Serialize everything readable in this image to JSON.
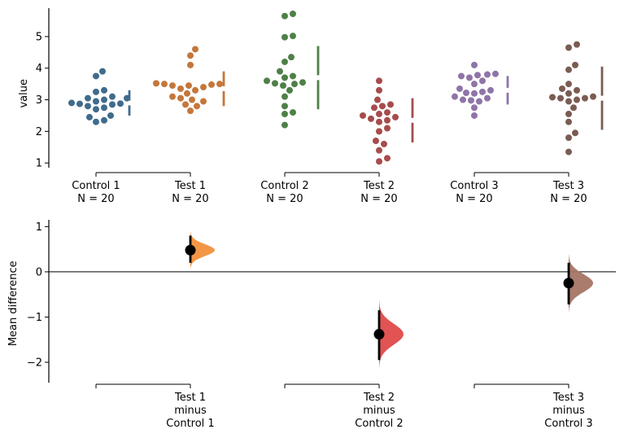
{
  "chart_data": [
    {
      "type": "scatter",
      "ylabel": "value",
      "ylim": [
        0.85,
        5.9
      ],
      "yticks": [
        1,
        2,
        3,
        4,
        5
      ],
      "groups": [
        {
          "label": "Control 1",
          "n_label": "N = 20",
          "color": "#3f6b8c",
          "values": [
            3.9,
            3.75,
            3.3,
            3.25,
            3.1,
            3.05,
            3.05,
            3.0,
            2.95,
            2.9,
            2.88,
            2.87,
            2.85,
            2.8,
            2.75,
            2.7,
            2.5,
            2.45,
            2.35,
            2.3
          ],
          "mean": 2.9,
          "sd": 0.4
        },
        {
          "label": "Test 1",
          "n_label": "N = 20",
          "color": "#c4773c",
          "values": [
            4.6,
            4.4,
            4.1,
            3.52,
            3.5,
            3.5,
            3.48,
            3.45,
            3.45,
            3.4,
            3.35,
            3.3,
            3.2,
            3.1,
            3.05,
            3.0,
            2.95,
            2.85,
            2.8,
            2.65
          ],
          "mean": 3.35,
          "sd": 0.55
        },
        {
          "label": "Control 2",
          "n_label": "N = 20",
          "color": "#4e8047",
          "values": [
            5.72,
            5.65,
            5.02,
            4.98,
            4.35,
            4.2,
            3.9,
            3.75,
            3.7,
            3.55,
            3.52,
            3.5,
            3.45,
            3.3,
            3.1,
            2.8,
            2.6,
            2.55,
            2.2,
            3.6
          ],
          "mean": 3.7,
          "sd": 1.0
        },
        {
          "label": "Test 2",
          "n_label": "N = 20",
          "color": "#a64c4c",
          "values": [
            3.6,
            3.3,
            3.0,
            2.85,
            2.8,
            2.75,
            2.6,
            2.55,
            2.5,
            2.45,
            2.4,
            2.35,
            2.3,
            2.1,
            2.0,
            1.7,
            1.6,
            1.4,
            1.15,
            1.05
          ],
          "mean": 2.35,
          "sd": 0.7
        },
        {
          "label": "Control 3",
          "n_label": "N = 20",
          "color": "#8f74a8",
          "values": [
            4.1,
            3.82,
            3.8,
            3.78,
            3.75,
            3.7,
            3.6,
            3.5,
            3.35,
            3.3,
            3.25,
            3.22,
            3.2,
            3.1,
            3.05,
            3.0,
            2.98,
            2.95,
            2.75,
            2.5
          ],
          "mean": 3.3,
          "sd": 0.45
        },
        {
          "label": "Test 3",
          "n_label": "N = 20",
          "color": "#7a5c52",
          "values": [
            4.75,
            4.65,
            4.1,
            3.95,
            3.5,
            3.35,
            3.3,
            3.1,
            3.08,
            3.05,
            3.05,
            3.0,
            2.95,
            2.75,
            2.55,
            2.3,
            1.95,
            1.8,
            1.35,
            3.2
          ],
          "mean": 3.05,
          "sd": 1.0
        }
      ]
    },
    {
      "type": "scatter",
      "ylabel": "Mean difference",
      "ylim": [
        -2.45,
        1.15
      ],
      "yticks": [
        -2,
        -1,
        0,
        1
      ],
      "comparisons": [
        {
          "label": [
            "Test 1",
            "minus",
            "Control 1"
          ],
          "position": "Test 1",
          "diff": 0.48,
          "ci": [
            0.2,
            0.8
          ],
          "color": "#f2903c",
          "dist_sd": 0.13
        },
        {
          "label": [
            "Test 2",
            "minus",
            "Control 2"
          ],
          "position": "Test 2",
          "diff": -1.38,
          "ci": [
            -1.95,
            -0.85
          ],
          "color": "#e04a4a",
          "dist_sd": 0.23
        },
        {
          "label": [
            "Test 3",
            "minus",
            "Control 3"
          ],
          "position": "Test 3",
          "diff": -0.25,
          "ci": [
            -0.72,
            0.2
          ],
          "color": "#a57565",
          "dist_sd": 0.2
        }
      ]
    }
  ]
}
